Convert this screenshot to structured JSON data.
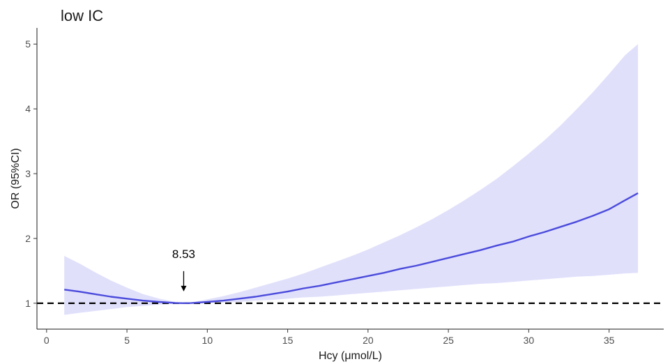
{
  "chart_data": {
    "type": "line",
    "title": "low IC",
    "xlabel": "Hcy (μmol/L)",
    "ylabel": "OR (95%CI)",
    "xlim": [
      -0.6,
      38.4
    ],
    "ylim": [
      0.6,
      5.25
    ],
    "xticks": [
      0,
      5,
      10,
      15,
      20,
      25,
      30,
      35
    ],
    "yticks": [
      1,
      2,
      3,
      4,
      5
    ],
    "grid": false,
    "reference_line": {
      "y": 1,
      "style": "dashed",
      "color": "#000000"
    },
    "series": [
      {
        "type": "line",
        "color": "#4b4bdc",
        "x": [
          1.1,
          2,
          3,
          4,
          5,
          6,
          7,
          8,
          8.53,
          9,
          10,
          11,
          12,
          13,
          14,
          15,
          16,
          17,
          18,
          19,
          20,
          21,
          22,
          23,
          24,
          25,
          26,
          27,
          28,
          29,
          30,
          31,
          32,
          33,
          34,
          35,
          36,
          36.8
        ],
        "y": [
          1.21,
          1.18,
          1.14,
          1.1,
          1.07,
          1.04,
          1.02,
          1.004,
          1.0,
          1.003,
          1.02,
          1.04,
          1.07,
          1.1,
          1.14,
          1.18,
          1.23,
          1.27,
          1.32,
          1.37,
          1.42,
          1.47,
          1.53,
          1.58,
          1.64,
          1.7,
          1.76,
          1.82,
          1.89,
          1.95,
          2.03,
          2.1,
          2.18,
          2.26,
          2.35,
          2.45,
          2.59,
          2.7
        ]
      }
    ],
    "ci_band": {
      "color": "#e0e0fb",
      "x": [
        1.1,
        2,
        3,
        4,
        5,
        6,
        7,
        8,
        8.53,
        9,
        10,
        11,
        12,
        13,
        14,
        15,
        16,
        17,
        18,
        19,
        20,
        21,
        22,
        23,
        24,
        25,
        26,
        27,
        28,
        29,
        30,
        31,
        32,
        33,
        34,
        35,
        36,
        36.8
      ],
      "upper": [
        1.73,
        1.62,
        1.48,
        1.35,
        1.24,
        1.14,
        1.07,
        1.02,
        1.0,
        1.012,
        1.06,
        1.11,
        1.17,
        1.24,
        1.31,
        1.38,
        1.46,
        1.55,
        1.64,
        1.73,
        1.83,
        1.94,
        2.05,
        2.17,
        2.3,
        2.44,
        2.59,
        2.75,
        2.92,
        3.11,
        3.31,
        3.52,
        3.75,
        4.0,
        4.26,
        4.54,
        4.83,
        5.0
      ],
      "lower": [
        0.82,
        0.85,
        0.88,
        0.91,
        0.94,
        0.96,
        0.98,
        0.995,
        1.0,
        1.0,
        1.0,
        1.01,
        1.02,
        1.04,
        1.05,
        1.07,
        1.09,
        1.1,
        1.12,
        1.14,
        1.16,
        1.18,
        1.2,
        1.22,
        1.24,
        1.26,
        1.28,
        1.3,
        1.31,
        1.33,
        1.35,
        1.37,
        1.39,
        1.41,
        1.42,
        1.44,
        1.46,
        1.47
      ]
    },
    "annotation": {
      "text": "8.53",
      "x": 8.53,
      "y": 1.0,
      "arrow": "down"
    }
  }
}
